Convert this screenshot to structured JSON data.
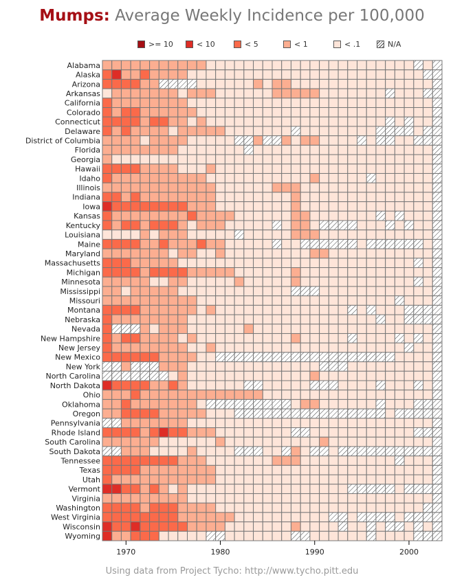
{
  "title": {
    "lead": "Mumps:",
    "rest": " Average Weekly Incidence per 100,000"
  },
  "footer": "Using data from Project Tycho: http://www.tycho.pitt.edu",
  "chart_data": {
    "type": "heatmap",
    "title": "Mumps: Average Weekly Incidence per 100,000",
    "xlabel": "",
    "ylabel": "",
    "x_start_year": 1968,
    "x_end_year": 2003,
    "x_ticks": [
      1970,
      1980,
      1990,
      2000
    ],
    "legend_position": "top",
    "legend": [
      {
        "code": 5,
        "label": ">= 10",
        "color": "#a50f15"
      },
      {
        "code": 4,
        "label": "< 10",
        "color": "#de2d26"
      },
      {
        "code": 3,
        "label": "< 5",
        "color": "#fb6a4a"
      },
      {
        "code": 2,
        "label": "< 1",
        "color": "#fcae91"
      },
      {
        "code": 1,
        "label": "< .1",
        "color": "#fee5d9"
      },
      {
        "code": 0,
        "label": "N/A",
        "color": "hatch"
      }
    ],
    "grid_color": "#777777",
    "states": [
      {
        "name": "Alabama",
        "codes": "222222222221111111111111111111111010"
      },
      {
        "name": "Alaska",
        "codes": "342232222111111111111111111111111100"
      },
      {
        "name": "Arizona",
        "codes": "333322000011111121221111111111111110"
      },
      {
        "name": "Arkansas",
        "codes": "122222221222111111222221111111011100"
      },
      {
        "name": "California",
        "codes": "322222222111111111111111111111111110"
      },
      {
        "name": "Colorado",
        "codes": "323322222211111111111111111111111110"
      },
      {
        "name": "Connecticut",
        "codes": "333323322121111111111111111111010110"
      },
      {
        "name": "Delaware",
        "codes": "323222212222211111110111111110000100"
      },
      {
        "name": "District of Columbia",
        "codes": "222212222111110020021221111010011000"
      },
      {
        "name": "Florida",
        "codes": "222222221111111011111111111111111110"
      },
      {
        "name": "Georgia",
        "codes": "211111111111111111111111111111111110"
      },
      {
        "name": "Hawaii",
        "codes": "333322221112111111111111111111111110"
      },
      {
        "name": "Idaho",
        "codes": "322222222221111111111121111101111110"
      },
      {
        "name": "Illinois",
        "codes": "222222222222111111222111111111111110"
      },
      {
        "name": "Indiana",
        "codes": "332322222222111111112111111111111110"
      },
      {
        "name": "Iowa",
        "codes": "433333333222111111112111111111111110"
      },
      {
        "name": "Kansas",
        "codes": "322222222322221111112211111110101110"
      },
      {
        "name": "Kentucky",
        "codes": "323323332122211111012210000111010110"
      },
      {
        "name": "Louisiana",
        "codes": "111121222111110111112221111111111110"
      },
      {
        "name": "Maine",
        "codes": "333322322232211111011000000100000010"
      },
      {
        "name": "Maryland",
        "codes": "222222212211211111111122111111111110"
      },
      {
        "name": "Massachusetts",
        "codes": "333222221111111111111111111111111010"
      },
      {
        "name": "Michigan",
        "codes": "333323333222221111112111111111111110"
      },
      {
        "name": "Minnesota",
        "codes": "222221122111112111112111111111111010"
      },
      {
        "name": "Mississippi",
        "codes": "221222221111111111110001111111111110"
      },
      {
        "name": "Missouri",
        "codes": "222222222211111111111111111111101110"
      },
      {
        "name": "Montana",
        "codes": "333322222212111111111111110101110000"
      },
      {
        "name": "Nebraska",
        "codes": "322222222111111111111111111110110000"
      },
      {
        "name": "Nevada",
        "codes": "300021222111111211111111111111111110"
      },
      {
        "name": "New Hampshire",
        "codes": "323322221211111111112111110111101010"
      },
      {
        "name": "New Jersey",
        "codes": "322222222112111111111111111111110110"
      },
      {
        "name": "New Mexico",
        "codes": "333333222211000000000000000000011110"
      },
      {
        "name": "New York",
        "codes": "002000222111111111111110001111111110"
      },
      {
        "name": "North Carolina",
        "codes": "000000012111111111111121111111111110"
      },
      {
        "name": "North Dakota",
        "codes": "433332232111111001111100011110111010"
      },
      {
        "name": "Ohio",
        "codes": "222322222222222221111111111111111110"
      },
      {
        "name": "Oklahoma",
        "codes": "223222222210000000001221111110111000"
      },
      {
        "name": "Oregon",
        "codes": "223333222221110000000000000000100000"
      },
      {
        "name": "Pennsylvania",
        "codes": "002222222111111111111111111111111110"
      },
      {
        "name": "Rhode Island",
        "codes": "333323433222111111110011111111111000"
      },
      {
        "name": "South Carolina",
        "codes": "222222111111211111111112111111111110"
      },
      {
        "name": "South Dakota",
        "codes": "002221111211110001102100100000000000"
      },
      {
        "name": "Tennessee",
        "codes": "333333332221111111222111111111101110"
      },
      {
        "name": "Texas",
        "codes": "333322222222111111111111111111111110"
      },
      {
        "name": "Utah",
        "codes": "322222222222111111111111111111111110"
      },
      {
        "name": "Vermont",
        "codes": "443323212111111111111111110000010000"
      },
      {
        "name": "Virginia",
        "codes": "222222222111111111111111111111111110"
      },
      {
        "name": "Washington",
        "codes": "333323332222111111111111111111111100"
      },
      {
        "name": "West Virginia",
        "codes": "333333332222221111111111001000010000"
      },
      {
        "name": "Wisconsin",
        "codes": "433433333222211111112111101101001010"
      },
      {
        "name": "Wyoming",
        "codes": "422333111110011111110011111101111000"
      }
    ]
  }
}
